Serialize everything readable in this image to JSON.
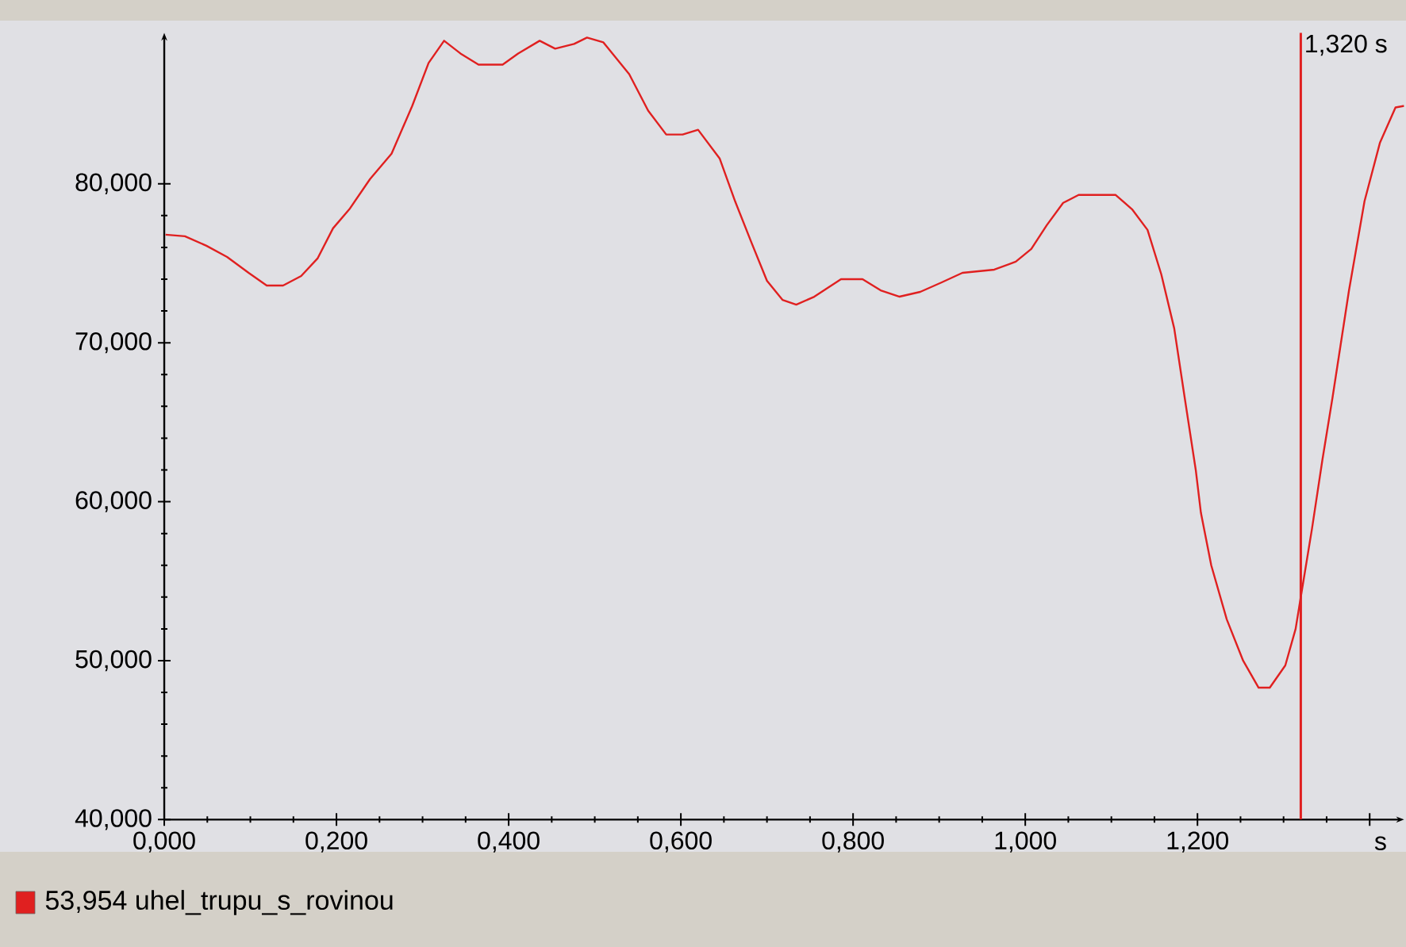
{
  "chart_data": {
    "type": "line",
    "x": [
      0.0015,
      0.024,
      0.049,
      0.073,
      0.098,
      0.119,
      0.138,
      0.159,
      0.178,
      0.196,
      0.215,
      0.239,
      0.264,
      0.288,
      0.307,
      0.325,
      0.344,
      0.365,
      0.393,
      0.411,
      0.436,
      0.454,
      0.476,
      0.491,
      0.51,
      0.54,
      0.562,
      0.583,
      0.602,
      0.62,
      0.645,
      0.663,
      0.682,
      0.7,
      0.718,
      0.734,
      0.755,
      0.786,
      0.811,
      0.832,
      0.854,
      0.878,
      0.903,
      0.927,
      0.964,
      0.989,
      1.007,
      1.025,
      1.044,
      1.062,
      1.105,
      1.124,
      1.142,
      1.158,
      1.173,
      1.185,
      1.198,
      1.204,
      1.216,
      1.234,
      1.253,
      1.271,
      1.284,
      1.302,
      1.314,
      1.32,
      1.333,
      1.345,
      1.357,
      1.376,
      1.394,
      1.412,
      1.43,
      1.44
    ],
    "series": [
      {
        "name": "53,954 uhel_trupu_s_rovinou",
        "color": "#e02020",
        "values": [
          76.8,
          76.7,
          76.1,
          75.4,
          74.4,
          73.6,
          73.6,
          74.2,
          75.3,
          77.2,
          78.4,
          80.3,
          81.9,
          84.9,
          87.6,
          89.0,
          88.2,
          87.5,
          87.5,
          88.2,
          89.0,
          88.5,
          88.8,
          89.2,
          88.9,
          86.9,
          84.6,
          83.1,
          83.1,
          83.4,
          81.6,
          78.9,
          76.3,
          73.9,
          72.7,
          72.4,
          72.9,
          74.0,
          74.0,
          73.3,
          72.9,
          73.2,
          73.8,
          74.4,
          74.6,
          75.1,
          75.9,
          77.4,
          78.8,
          79.3,
          79.3,
          78.4,
          77.1,
          74.3,
          70.9,
          66.6,
          62.0,
          59.3,
          56.0,
          52.6,
          50.0,
          48.3,
          48.3,
          49.7,
          52.0,
          54.0,
          58.3,
          62.6,
          66.6,
          73.3,
          78.9,
          82.6,
          84.8,
          84.9
        ]
      }
    ],
    "xlabel": "s",
    "xlim": [
      0,
      1.44
    ],
    "ylim": [
      40,
      89.5
    ],
    "xticks": [
      {
        "value": 0,
        "label": "0,000"
      },
      {
        "value": 0.2,
        "label": "0,200"
      },
      {
        "value": 0.4,
        "label": "0,400"
      },
      {
        "value": 0.6,
        "label": "0,600"
      },
      {
        "value": 0.8,
        "label": "0,800"
      },
      {
        "value": 1.0,
        "label": "1,000"
      },
      {
        "value": 1.2,
        "label": "1,200"
      },
      {
        "value": 1.4,
        "label": null
      }
    ],
    "yticks": [
      {
        "value": 40,
        "label": "40,000"
      },
      {
        "value": 50,
        "label": "50,000"
      },
      {
        "value": 60,
        "label": "60,000"
      },
      {
        "value": 70,
        "label": "70,000"
      },
      {
        "value": 80,
        "label": "80,000"
      }
    ],
    "ref_lines": [
      {
        "axis": "x",
        "value": 1.32,
        "label": "1,320 s",
        "color": "#e02020"
      }
    ],
    "legend": "bottom",
    "marker": "none",
    "line_style": "solid"
  }
}
